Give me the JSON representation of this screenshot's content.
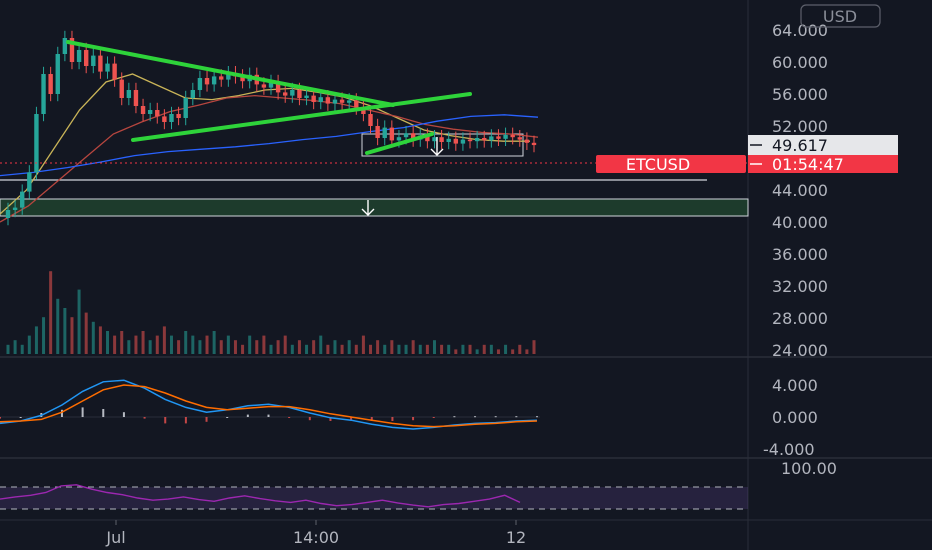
{
  "currency_button": "USD",
  "symbol_label": "ETCUSD",
  "countdown": "01:54:47",
  "price_line_label": "49.617",
  "colors": {
    "background": "#131722",
    "up": "#26a69a",
    "down": "#ef5350",
    "trendline": "#2ed33a",
    "ma_yellow": "#c9b458",
    "ma_red": "#b7463f",
    "ma_blue": "#2962ff",
    "macd": "#2196f3",
    "signal": "#ff6d00",
    "rsi": "#9c27b0",
    "badge_red": "#f23645"
  },
  "chart_data": [
    {
      "type": "candlestick",
      "pane": "price",
      "ylim": [
        24000,
        66000
      ],
      "y_ticks": [
        "64.000",
        "60.000",
        "56.000",
        "52.000",
        "48.000",
        "44.000",
        "40.000",
        "36.000",
        "32.000",
        "28.000",
        "24.000"
      ],
      "x_ticks": [
        "Jul",
        "14:00",
        "12"
      ],
      "close": [
        41500,
        41800,
        43800,
        46200,
        53500,
        58500,
        56000,
        61000,
        63000,
        60000,
        61500,
        59500,
        60800,
        58800,
        59800,
        57800,
        55500,
        56500,
        54500,
        53500,
        54000,
        53200,
        52500,
        53500,
        53000,
        55500,
        56500,
        58000,
        57200,
        58200,
        57800,
        58600,
        58200,
        57600,
        58400,
        57200,
        56800,
        57500,
        56200,
        55800,
        56500,
        55500,
        55800,
        55000,
        55600,
        54800,
        55300,
        54900,
        55200,
        54300,
        53500,
        52000,
        50500,
        51800,
        50200,
        50600,
        51100,
        50300,
        50800,
        50100,
        50600,
        50000,
        50400,
        49800,
        50300,
        50100,
        50500,
        50200,
        50700,
        50400,
        50900,
        50600,
        50300,
        49900,
        49617
      ],
      "ma_yellow": [
        41000,
        44000,
        49000,
        54000,
        57500,
        58500,
        57000,
        55500,
        55300,
        55800,
        56500,
        56700,
        56200,
        55600,
        54500,
        53000,
        51500,
        50800,
        50300,
        50100,
        50100
      ],
      "ma_red": [
        40000,
        42000,
        45000,
        48000,
        51000,
        52500,
        53800,
        54600,
        55500,
        55800,
        55500,
        55200,
        54800,
        54000,
        53200,
        52200,
        51600,
        51200,
        51000,
        50600
      ],
      "ma_blue": [
        45800,
        46200,
        46800,
        47500,
        48300,
        48800,
        49100,
        49400,
        49800,
        50300,
        50700,
        51300,
        51800,
        52600,
        53200,
        53400,
        53100
      ],
      "volume": [
        2,
        3,
        2,
        4,
        6,
        8,
        18,
        12,
        10,
        8,
        14,
        9,
        7,
        6,
        5,
        4,
        5,
        3,
        4,
        5,
        3,
        4,
        6,
        4,
        3,
        5,
        4,
        3,
        4,
        5,
        3,
        4,
        3,
        2,
        4,
        3,
        4,
        2,
        3,
        4,
        2,
        3,
        2,
        3,
        4,
        2,
        3,
        2,
        3,
        2,
        4,
        2,
        3,
        2,
        3,
        2,
        2,
        3,
        2,
        2,
        3,
        2,
        2,
        1,
        2,
        2,
        1,
        2,
        2,
        1,
        2,
        1,
        2,
        1,
        3
      ]
    },
    {
      "type": "line",
      "pane": "macd",
      "ylim": [
        -4800,
        5200
      ],
      "y_ticks": [
        "4.000",
        "0.000",
        "-4.000"
      ],
      "macd": [
        -800,
        -500,
        200,
        1500,
        3200,
        4400,
        4600,
        3600,
        2200,
        1200,
        600,
        900,
        1400,
        1600,
        1200,
        500,
        -100,
        -400,
        -900,
        -1300,
        -1500,
        -1300,
        -1000,
        -800,
        -700,
        -500,
        -400
      ],
      "signal": [
        -600,
        -500,
        -300,
        600,
        2000,
        3400,
        4000,
        3800,
        3000,
        2000,
        1200,
        900,
        1100,
        1300,
        1300,
        900,
        400,
        0,
        -400,
        -800,
        -1100,
        -1200,
        -1100,
        -900,
        -800,
        -600,
        -500
      ]
    },
    {
      "type": "line",
      "pane": "rsi",
      "ylim": [
        0,
        100
      ],
      "y_ticks": [
        "100.00"
      ],
      "bands": [
        70,
        30
      ],
      "rsi": [
        48,
        52,
        55,
        60,
        72,
        74,
        66,
        60,
        56,
        50,
        46,
        48,
        52,
        47,
        44,
        50,
        54,
        49,
        45,
        42,
        46,
        40,
        36,
        38,
        42,
        46,
        41,
        37,
        34,
        38,
        40,
        44,
        48,
        55,
        42
      ]
    }
  ]
}
